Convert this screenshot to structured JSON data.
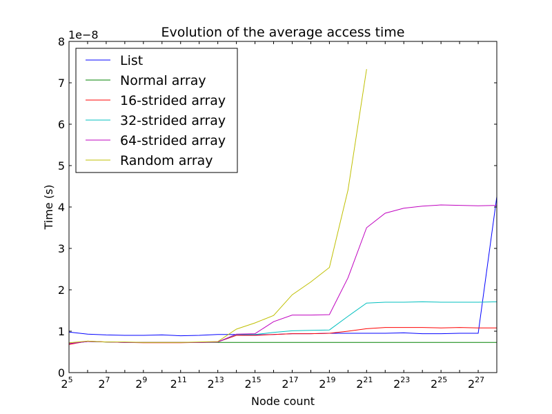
{
  "chart_data": {
    "type": "line",
    "title": "Evolution of the average access time",
    "xlabel": "Node count",
    "ylabel": "Time (s)",
    "y_offset_label": "1e−8",
    "xscale": "log2",
    "x": [
      5,
      6,
      7,
      8,
      9,
      10,
      11,
      12,
      13,
      14,
      15,
      16,
      17,
      18,
      19,
      20,
      21,
      22,
      23,
      24,
      25,
      26,
      27,
      28
    ],
    "xlim": [
      5,
      28
    ],
    "ylim": [
      0,
      8
    ],
    "x_ticks": [
      {
        "value": 5,
        "base": "2",
        "exp": "5"
      },
      {
        "value": 7,
        "base": "2",
        "exp": "7"
      },
      {
        "value": 9,
        "base": "2",
        "exp": "9"
      },
      {
        "value": 11,
        "base": "2",
        "exp": "11"
      },
      {
        "value": 13,
        "base": "2",
        "exp": "13"
      },
      {
        "value": 15,
        "base": "2",
        "exp": "15"
      },
      {
        "value": 17,
        "base": "2",
        "exp": "17"
      },
      {
        "value": 19,
        "base": "2",
        "exp": "19"
      },
      {
        "value": 21,
        "base": "2",
        "exp": "21"
      },
      {
        "value": 23,
        "base": "2",
        "exp": "23"
      },
      {
        "value": 25,
        "base": "2",
        "exp": "25"
      },
      {
        "value": 27,
        "base": "2",
        "exp": "27"
      }
    ],
    "y_ticks": [
      {
        "value": 0,
        "label": "0"
      },
      {
        "value": 1,
        "label": "1"
      },
      {
        "value": 2,
        "label": "2"
      },
      {
        "value": 3,
        "label": "3"
      },
      {
        "value": 4,
        "label": "4"
      },
      {
        "value": 5,
        "label": "5"
      },
      {
        "value": 6,
        "label": "6"
      },
      {
        "value": 7,
        "label": "7"
      },
      {
        "value": 8,
        "label": "8"
      }
    ],
    "legend_position": "upper-left",
    "grid": false,
    "series": [
      {
        "name": "List",
        "color": "#0000ff",
        "values": [
          0.98,
          0.93,
          0.91,
          0.9,
          0.9,
          0.91,
          0.89,
          0.9,
          0.92,
          0.92,
          0.91,
          0.92,
          0.94,
          0.94,
          0.95,
          0.95,
          0.95,
          0.95,
          0.96,
          0.94,
          0.94,
          0.95,
          0.95,
          4.25
        ]
      },
      {
        "name": "Normal array",
        "color": "#008000",
        "values": [
          0.7,
          0.75,
          0.74,
          0.73,
          0.73,
          0.73,
          0.73,
          0.73,
          0.73,
          0.73,
          0.73,
          0.73,
          0.73,
          0.73,
          0.73,
          0.73,
          0.73,
          0.73,
          0.73,
          0.73,
          0.73,
          0.73,
          0.73,
          0.73
        ]
      },
      {
        "name": "16-strided array",
        "color": "#ff0000",
        "values": [
          0.68,
          0.76,
          0.74,
          0.73,
          0.72,
          0.72,
          0.72,
          0.73,
          0.74,
          0.9,
          0.9,
          0.92,
          0.94,
          0.94,
          0.95,
          1.0,
          1.06,
          1.09,
          1.09,
          1.09,
          1.08,
          1.09,
          1.08,
          1.08
        ]
      },
      {
        "name": "32-strided array",
        "color": "#00bfbf",
        "values": [
          0.7,
          0.75,
          0.74,
          0.73,
          0.73,
          0.73,
          0.73,
          0.73,
          0.74,
          0.92,
          0.92,
          0.97,
          1.01,
          1.02,
          1.03,
          1.36,
          1.68,
          1.7,
          1.7,
          1.71,
          1.7,
          1.7,
          1.7,
          1.71
        ]
      },
      {
        "name": "64-strided array",
        "color": "#bf00bf",
        "values": [
          0.7,
          0.75,
          0.74,
          0.73,
          0.73,
          0.73,
          0.73,
          0.73,
          0.74,
          0.93,
          0.94,
          1.23,
          1.39,
          1.39,
          1.4,
          2.29,
          3.5,
          3.85,
          3.97,
          4.02,
          4.05,
          4.04,
          4.03,
          4.04
        ]
      },
      {
        "name": "Random array",
        "color": "#bfbf00",
        "values": [
          0.72,
          0.76,
          0.74,
          0.74,
          0.73,
          0.73,
          0.73,
          0.74,
          0.75,
          1.05,
          1.2,
          1.38,
          1.88,
          2.19,
          2.54,
          4.41,
          7.33,
          null,
          null,
          null,
          null,
          null,
          null,
          null
        ]
      }
    ]
  }
}
